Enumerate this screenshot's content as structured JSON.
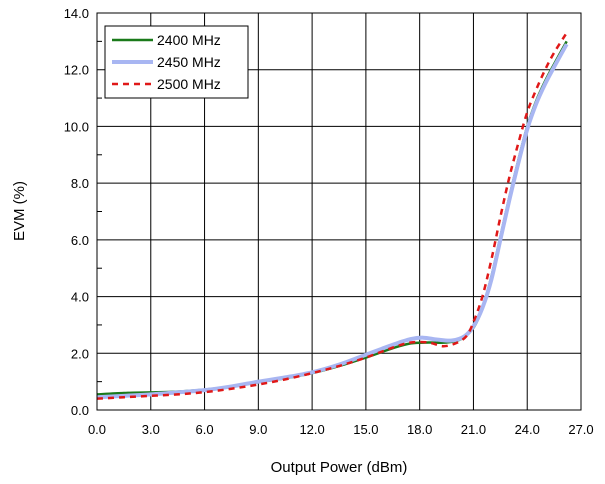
{
  "chart_data": {
    "type": "line",
    "title": "",
    "xlabel": "Output Power (dBm)",
    "ylabel": "EVM (%)",
    "xlim": [
      0,
      27
    ],
    "ylim": [
      0,
      14
    ],
    "x_ticks": [
      "0.0",
      "3.0",
      "6.0",
      "9.0",
      "12.0",
      "15.0",
      "18.0",
      "21.0",
      "24.0",
      "27.0"
    ],
    "y_ticks": [
      "0.0",
      "2.0",
      "4.0",
      "6.0",
      "8.0",
      "10.0",
      "12.0",
      "14.0"
    ],
    "grid": true,
    "legend_position": "top-left",
    "series": [
      {
        "name": "2400 MHz",
        "color": "#1a7a1a",
        "style": "solid",
        "points": [
          [
            0,
            0.55
          ],
          [
            1.5,
            0.6
          ],
          [
            3,
            0.62
          ],
          [
            4.5,
            0.65
          ],
          [
            6,
            0.72
          ],
          [
            7.5,
            0.82
          ],
          [
            9,
            0.98
          ],
          [
            10.5,
            1.12
          ],
          [
            12,
            1.3
          ],
          [
            13.5,
            1.55
          ],
          [
            15,
            1.85
          ],
          [
            16.5,
            2.18
          ],
          [
            17.5,
            2.35
          ],
          [
            18.5,
            2.38
          ],
          [
            19.5,
            2.38
          ],
          [
            20.3,
            2.5
          ],
          [
            21,
            2.9
          ],
          [
            21.5,
            3.6
          ],
          [
            22,
            4.7
          ],
          [
            22.5,
            6.1
          ],
          [
            23,
            7.5
          ],
          [
            23.5,
            8.8
          ],
          [
            24,
            10.0
          ],
          [
            24.5,
            10.9
          ],
          [
            25,
            11.6
          ],
          [
            25.5,
            12.2
          ],
          [
            26.2,
            13.0
          ]
        ]
      },
      {
        "name": "2450 MHz",
        "color": "#a8b6f2",
        "style": "solid",
        "points": [
          [
            0,
            0.45
          ],
          [
            1.5,
            0.5
          ],
          [
            3,
            0.55
          ],
          [
            4.5,
            0.62
          ],
          [
            6,
            0.7
          ],
          [
            7.5,
            0.83
          ],
          [
            9,
            1.0
          ],
          [
            10.5,
            1.15
          ],
          [
            12,
            1.33
          ],
          [
            13.5,
            1.6
          ],
          [
            15,
            1.95
          ],
          [
            16.5,
            2.3
          ],
          [
            17.5,
            2.5
          ],
          [
            18.2,
            2.55
          ],
          [
            19,
            2.48
          ],
          [
            19.8,
            2.45
          ],
          [
            20.5,
            2.6
          ],
          [
            21,
            2.95
          ],
          [
            21.5,
            3.6
          ],
          [
            22,
            4.6
          ],
          [
            22.5,
            6.0
          ],
          [
            23,
            7.4
          ],
          [
            23.5,
            8.7
          ],
          [
            24,
            9.9
          ],
          [
            24.5,
            10.8
          ],
          [
            25,
            11.5
          ],
          [
            25.5,
            12.1
          ],
          [
            26.2,
            12.9
          ]
        ]
      },
      {
        "name": "2500 MHz",
        "color": "#e01818",
        "style": "dashed",
        "points": [
          [
            0,
            0.4
          ],
          [
            1.5,
            0.45
          ],
          [
            3,
            0.5
          ],
          [
            4.5,
            0.55
          ],
          [
            6,
            0.63
          ],
          [
            7.5,
            0.75
          ],
          [
            9,
            0.9
          ],
          [
            10.5,
            1.08
          ],
          [
            12,
            1.3
          ],
          [
            13.5,
            1.55
          ],
          [
            15,
            1.85
          ],
          [
            16.5,
            2.2
          ],
          [
            17.5,
            2.38
          ],
          [
            18.5,
            2.38
          ],
          [
            19.3,
            2.25
          ],
          [
            20,
            2.35
          ],
          [
            20.6,
            2.6
          ],
          [
            21,
            3.1
          ],
          [
            21.5,
            4.0
          ],
          [
            22,
            5.3
          ],
          [
            22.5,
            6.8
          ],
          [
            23,
            8.2
          ],
          [
            23.5,
            9.4
          ],
          [
            24,
            10.5
          ],
          [
            24.5,
            11.3
          ],
          [
            25,
            12.0
          ],
          [
            25.5,
            12.6
          ],
          [
            26.2,
            13.3
          ]
        ]
      }
    ]
  }
}
